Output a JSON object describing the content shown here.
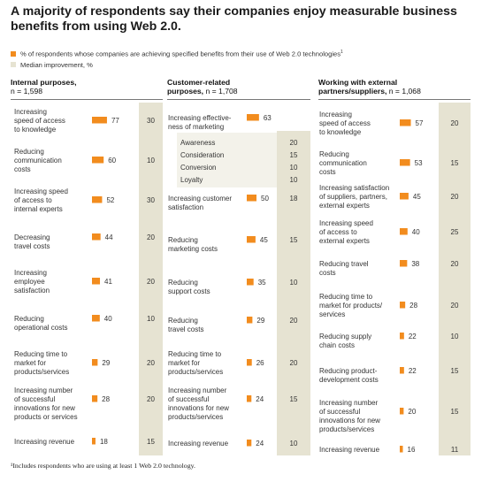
{
  "title": "A majority of respondents say their companies enjoy measurable business benefits from using Web 2.0.",
  "legend": {
    "bar_label": "% of respondents whose companies are achieving specified benefits from their use of Web 2.0 technologies",
    "bar_sup": "1",
    "median_label": "Median improvement, %"
  },
  "footnote": "¹Includes respondents who are using at least 1 Web 2.0 technology.",
  "colors": {
    "bar": "#f28c1e",
    "median_band": "#e6e3d2",
    "rule": "#777777"
  },
  "chart_data": [
    {
      "type": "bar",
      "title": "Internal purposes,",
      "n": "n = 1,598",
      "rows": [
        {
          "label": "Increasing speed of access to knowledge",
          "lines": [
            "Increasing",
            "speed of access",
            "to knowledge"
          ],
          "value": 77,
          "median": 30
        },
        {
          "label": "Reducing communication costs",
          "lines": [
            "Reducing",
            "communication",
            "costs"
          ],
          "value": 60,
          "median": 10
        },
        {
          "label": "Increasing speed of access to internal experts",
          "lines": [
            "Increasing speed",
            "of access to",
            "internal experts"
          ],
          "value": 52,
          "median": 30
        },
        {
          "label": "Decreasing travel costs",
          "lines": [
            "Decreasing",
            "travel costs"
          ],
          "value": 44,
          "median": 20
        },
        {
          "label": "Increasing employee satisfaction",
          "lines": [
            "Increasing",
            "employee",
            "satisfaction"
          ],
          "value": 41,
          "median": 20
        },
        {
          "label": "Reducing operational costs",
          "lines": [
            "Reducing",
            "operational costs"
          ],
          "value": 40,
          "median": 10
        },
        {
          "label": "Reducing time to market for products/services",
          "lines": [
            "Reducing time to",
            "market for",
            "products/services"
          ],
          "value": 29,
          "median": 20
        },
        {
          "label": "Increasing number of successful innovations for new products or services",
          "lines": [
            "Increasing number",
            "of successful",
            "innovations for new",
            "products or services"
          ],
          "value": 28,
          "median": 20
        },
        {
          "label": "Increasing revenue",
          "lines": [
            "Increasing revenue"
          ],
          "value": 18,
          "median": 15
        }
      ]
    },
    {
      "type": "bar",
      "title": "Customer-related purposes,",
      "title_lines": [
        "Customer-related",
        "purposes,"
      ],
      "n": "n = 1,708",
      "rows": [
        {
          "label": "Increasing effectiveness of marketing",
          "lines": [
            "Increasing effective-",
            "ness of marketing"
          ],
          "value": 63,
          "median": null,
          "subrows": [
            {
              "label": "Awareness",
              "median": 20
            },
            {
              "label": "Consideration",
              "median": 15
            },
            {
              "label": "Conversion",
              "median": 10
            },
            {
              "label": "Loyalty",
              "median": 10
            }
          ]
        },
        {
          "label": "Increasing customer satisfaction",
          "lines": [
            "Increasing customer",
            "satisfaction"
          ],
          "value": 50,
          "median": 18
        },
        {
          "label": "Reducing marketing costs",
          "lines": [
            "Reducing",
            "marketing costs"
          ],
          "value": 45,
          "median": 15
        },
        {
          "label": "Reducing support costs",
          "lines": [
            "Reducing",
            "support costs"
          ],
          "value": 35,
          "median": 10
        },
        {
          "label": "Reducing travel costs",
          "lines": [
            "Reducing",
            "travel costs"
          ],
          "value": 29,
          "median": 20
        },
        {
          "label": "Reducing time to market for products/services",
          "lines": [
            "Reducing time to",
            "market for",
            "products/services"
          ],
          "value": 26,
          "median": 20
        },
        {
          "label": "Increasing number of successful innovations for new products/services",
          "lines": [
            "Increasing number",
            "of successful",
            "innovations for new",
            "products/services"
          ],
          "value": 24,
          "median": 15
        },
        {
          "label": "Increasing revenue",
          "lines": [
            "Increasing revenue"
          ],
          "value": 24,
          "median": 10
        }
      ]
    },
    {
      "type": "bar",
      "title": "Working with external partners/suppliers,",
      "title_lines": [
        "Working with external",
        "partners/suppliers,"
      ],
      "n": "n = 1,068",
      "rows": [
        {
          "label": "Increasing speed of access to knowledge",
          "lines": [
            "Increasing",
            "speed of access",
            "to knowledge"
          ],
          "value": 57,
          "median": 20
        },
        {
          "label": "Reducing communication costs",
          "lines": [
            "Reducing",
            "communication",
            "costs"
          ],
          "value": 53,
          "median": 15
        },
        {
          "label": "Increasing satisfaction of suppliers, partners, external experts",
          "lines": [
            "Increasing satisfaction",
            "of suppliers, partners,",
            "external experts"
          ],
          "value": 45,
          "median": 20
        },
        {
          "label": "Increasing speed of access to external experts",
          "lines": [
            "Increasing speed",
            "of access to",
            "external experts"
          ],
          "value": 40,
          "median": 25
        },
        {
          "label": "Reducing travel costs",
          "lines": [
            "Reducing travel",
            "costs"
          ],
          "value": 38,
          "median": 20
        },
        {
          "label": "Reducing time to market for products/services",
          "lines": [
            "Reducing time to",
            "market for products/",
            "services"
          ],
          "value": 28,
          "median": 20
        },
        {
          "label": "Reducing supply chain costs",
          "lines": [
            "Reducing supply",
            "chain costs"
          ],
          "value": 22,
          "median": 10
        },
        {
          "label": "Reducing product-development costs",
          "lines": [
            "Reducing product-",
            "development costs"
          ],
          "value": 22,
          "median": 15
        },
        {
          "label": "Increasing number of successful innovations for new products/services",
          "lines": [
            "Increasing number",
            "of successful",
            "innovations for new",
            "products/services"
          ],
          "value": 20,
          "median": 15
        },
        {
          "label": "Increasing revenue",
          "lines": [
            "Increasing revenue"
          ],
          "value": 16,
          "median": 11
        }
      ]
    }
  ]
}
